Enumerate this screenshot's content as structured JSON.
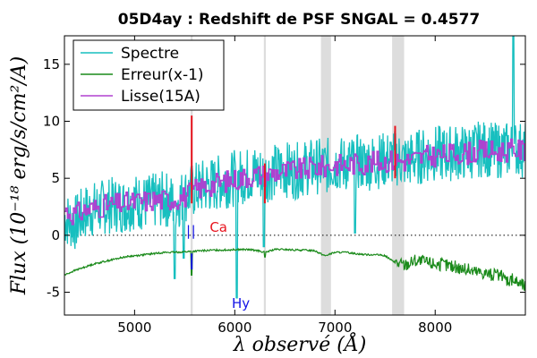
{
  "chart_data": {
    "type": "line",
    "title": "05D4ay : Redshift de PSF SNGAL = 0.4577",
    "xlabel": "λ observé (Å)",
    "ylabel": "Flux (10⁻¹⁸ erg/s/cm²/A)",
    "xlim": [
      4300,
      8900
    ],
    "ylim": [
      -7,
      17.5
    ],
    "x_ticks": [
      5000,
      6000,
      7000,
      8000
    ],
    "y_ticks": [
      -5,
      0,
      5,
      10,
      15
    ],
    "grid": false,
    "legend_position": "top-left",
    "colors": {
      "spectre": "#17bfbf",
      "erreur": "#1a8a1a",
      "lisse": "#b040d0",
      "telluric_bands": "#dddddd",
      "emission_marks": "#e8141e",
      "lines_blue": "#1414e6",
      "lines_red": "#e8141e"
    },
    "telluric_bands": [
      [
        5560,
        5580
      ],
      [
        6290,
        6310
      ],
      [
        6860,
        6960
      ],
      [
        7570,
        7690
      ]
    ],
    "emission_marks": [
      {
        "x": 5570,
        "y1": 2.8,
        "y2": 10.5
      },
      {
        "x": 6300,
        "y1": 2.8,
        "y2": 6.3
      },
      {
        "x": 7600,
        "y1": 5.0,
        "y2": 9.6
      }
    ],
    "line_markers": [
      {
        "x": 5515,
        "y": 0.0,
        "label": "|",
        "color": "#1414e6"
      },
      {
        "x": 5565,
        "y": 0.0,
        "label": "|",
        "color": "#1414e6"
      },
      {
        "x": 5750,
        "y": 0.3,
        "label": "Ca",
        "color": "#e8141e"
      },
      {
        "x": 5970,
        "y": -7.0,
        "label": "Hy",
        "color": "#1414e6"
      }
    ],
    "series": [
      {
        "name": "Spectre",
        "x": [
          4300,
          4400,
          4500,
          4600,
          4700,
          4800,
          4900,
          5000,
          5100,
          5200,
          5300,
          5400,
          5500,
          5600,
          5700,
          5800,
          5900,
          6000,
          6100,
          6200,
          6300,
          6400,
          6500,
          6600,
          6700,
          6800,
          6900,
          7000,
          7100,
          7200,
          7300,
          7400,
          7500,
          7600,
          7700,
          7800,
          7900,
          8000,
          8100,
          8200,
          8300,
          8400,
          8500,
          8600,
          8700,
          8800,
          8900
        ],
        "y": [
          1.5,
          1.0,
          2.0,
          2.3,
          2.5,
          2.7,
          2.6,
          3.0,
          2.8,
          3.0,
          3.2,
          2.8,
          3.5,
          4.0,
          4.3,
          4.5,
          4.8,
          5.0,
          5.2,
          5.5,
          5.3,
          5.6,
          5.8,
          5.6,
          5.9,
          6.1,
          6.0,
          6.3,
          6.2,
          6.4,
          6.3,
          6.5,
          6.6,
          6.8,
          6.5,
          6.8,
          7.0,
          7.2,
          7.1,
          7.3,
          7.2,
          7.5,
          7.6,
          7.4,
          7.5,
          7.6,
          7.5
        ]
      },
      {
        "name": "Erreur(x-1)",
        "x": [
          4300,
          4400,
          4500,
          4600,
          4700,
          4800,
          4900,
          5000,
          5100,
          5200,
          5300,
          5400,
          5500,
          5600,
          5700,
          5800,
          5900,
          6000,
          6100,
          6200,
          6300,
          6400,
          6500,
          6600,
          6700,
          6800,
          6900,
          7000,
          7100,
          7200,
          7300,
          7400,
          7500,
          7600,
          7700,
          7800,
          7900,
          8000,
          8100,
          8200,
          8300,
          8400,
          8500,
          8600,
          8700,
          8800,
          8900
        ],
        "y": [
          -3.5,
          -3.1,
          -2.8,
          -2.5,
          -2.3,
          -2.1,
          -1.9,
          -1.8,
          -1.7,
          -1.6,
          -1.5,
          -1.5,
          -1.45,
          -1.4,
          -1.35,
          -1.3,
          -1.3,
          -1.25,
          -1.25,
          -1.3,
          -1.5,
          -1.25,
          -1.25,
          -1.3,
          -1.3,
          -1.35,
          -1.8,
          -1.5,
          -1.5,
          -1.6,
          -1.7,
          -1.7,
          -1.8,
          -2.4,
          -2.6,
          -2.2,
          -2.4,
          -2.5,
          -2.6,
          -2.8,
          -3.0,
          -3.2,
          -3.3,
          -3.5,
          -3.8,
          -4.0,
          -4.5
        ]
      },
      {
        "name": "Lisse(15A)",
        "x": [
          4300,
          4400,
          4500,
          4600,
          4700,
          4800,
          4900,
          5000,
          5100,
          5200,
          5300,
          5400,
          5500,
          5600,
          5700,
          5800,
          5900,
          6000,
          6100,
          6200,
          6300,
          6400,
          6500,
          6600,
          6700,
          6800,
          6900,
          7000,
          7100,
          7200,
          7300,
          7400,
          7500,
          7600,
          7700,
          7800,
          7900,
          8000,
          8100,
          8200,
          8300,
          8400,
          8500,
          8600,
          8700,
          8800,
          8900
        ],
        "y": [
          2.2,
          1.8,
          2.2,
          2.4,
          2.6,
          2.7,
          2.8,
          2.9,
          3.0,
          3.1,
          3.1,
          3.2,
          3.4,
          4.0,
          4.3,
          4.5,
          4.7,
          4.9,
          5.1,
          5.3,
          5.3,
          5.5,
          5.6,
          5.7,
          5.8,
          6.0,
          6.0,
          6.2,
          6.2,
          6.3,
          6.3,
          6.4,
          6.5,
          6.6,
          6.5,
          6.7,
          6.9,
          7.0,
          7.0,
          7.2,
          7.2,
          7.3,
          7.4,
          7.3,
          7.4,
          7.5,
          7.4
        ]
      }
    ]
  }
}
